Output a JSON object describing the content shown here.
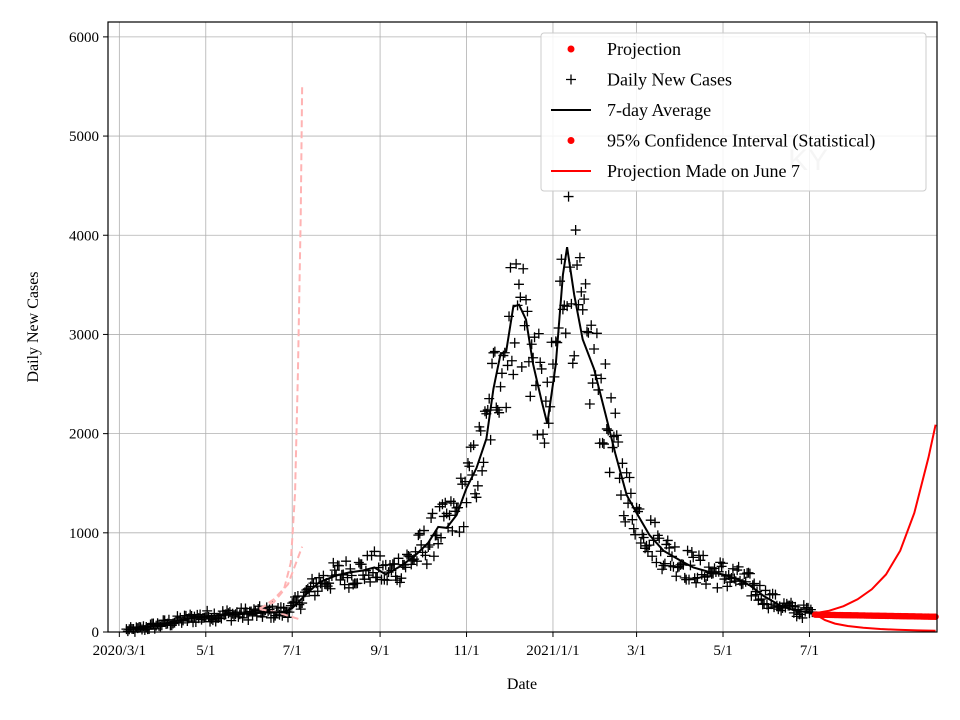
{
  "chart_data": {
    "type": "line",
    "xlabel": "Date",
    "ylabel": "Daily New Cases",
    "watermark": "KY",
    "xlim": [
      "2020-02-22",
      "2021-09-29"
    ],
    "ylim": [
      0,
      6150
    ],
    "grid": true,
    "legend_position": "top-right",
    "x_ticks": [
      {
        "date": "2020-03-01",
        "label": "2020/3/1"
      },
      {
        "date": "2020-05-01",
        "label": "5/1"
      },
      {
        "date": "2020-07-01",
        "label": "7/1"
      },
      {
        "date": "2020-09-01",
        "label": "9/1"
      },
      {
        "date": "2020-11-01",
        "label": "11/1"
      },
      {
        "date": "2021-01-01",
        "label": "2021/1/1"
      },
      {
        "date": "2021-03-01",
        "label": "3/1"
      },
      {
        "date": "2021-05-01",
        "label": "5/1"
      },
      {
        "date": "2021-07-01",
        "label": "7/1"
      }
    ],
    "y_ticks": [
      0,
      1000,
      2000,
      3000,
      4000,
      5000,
      6000
    ],
    "legend": [
      {
        "label": "Projection",
        "kind": "dot",
        "color": "#ff0000"
      },
      {
        "label": "Daily New Cases",
        "kind": "plus",
        "color": "#000000"
      },
      {
        "label": "7-day Average",
        "kind": "line",
        "color": "#000000"
      },
      {
        "label": "95% Confidence Interval (Statistical)",
        "kind": "dot",
        "color": "#ff0000"
      },
      {
        "label": "Projection Made on June 7",
        "kind": "line",
        "color": "#ff0000"
      }
    ],
    "series": [
      {
        "name": "7-day Average",
        "color": "#000000",
        "points": [
          [
            "2020-03-12",
            20
          ],
          [
            "2020-03-25",
            60
          ],
          [
            "2020-04-10",
            110
          ],
          [
            "2020-04-25",
            150
          ],
          [
            "2020-05-10",
            170
          ],
          [
            "2020-05-25",
            180
          ],
          [
            "2020-06-05",
            190
          ],
          [
            "2020-06-15",
            200
          ],
          [
            "2020-06-25",
            200
          ],
          [
            "2020-07-01",
            240
          ],
          [
            "2020-07-10",
            370
          ],
          [
            "2020-07-20",
            500
          ],
          [
            "2020-08-01",
            570
          ],
          [
            "2020-08-10",
            600
          ],
          [
            "2020-08-20",
            620
          ],
          [
            "2020-08-28",
            650
          ],
          [
            "2020-09-05",
            580
          ],
          [
            "2020-09-15",
            660
          ],
          [
            "2020-09-25",
            760
          ],
          [
            "2020-10-05",
            900
          ],
          [
            "2020-10-12",
            1060
          ],
          [
            "2020-10-18",
            1050
          ],
          [
            "2020-10-25",
            1180
          ],
          [
            "2020-11-01",
            1450
          ],
          [
            "2020-11-08",
            1650
          ],
          [
            "2020-11-15",
            1950
          ],
          [
            "2020-11-20",
            2450
          ],
          [
            "2020-11-25",
            2800
          ],
          [
            "2020-11-29",
            2830
          ],
          [
            "2020-12-04",
            3280
          ],
          [
            "2020-12-08",
            3300
          ],
          [
            "2020-12-13",
            3150
          ],
          [
            "2020-12-18",
            2700
          ],
          [
            "2020-12-24",
            2330
          ],
          [
            "2020-12-28",
            2100
          ],
          [
            "2021-01-03",
            2700
          ],
          [
            "2021-01-08",
            3600
          ],
          [
            "2021-01-11",
            3880
          ],
          [
            "2021-01-16",
            3400
          ],
          [
            "2021-01-22",
            2950
          ],
          [
            "2021-01-30",
            2650
          ],
          [
            "2021-02-07",
            2200
          ],
          [
            "2021-02-14",
            1800
          ],
          [
            "2021-02-22",
            1380
          ],
          [
            "2021-03-01",
            1200
          ],
          [
            "2021-03-10",
            980
          ],
          [
            "2021-03-20",
            820
          ],
          [
            "2021-04-01",
            720
          ],
          [
            "2021-04-10",
            650
          ],
          [
            "2021-04-20",
            610
          ],
          [
            "2021-05-01",
            580
          ],
          [
            "2021-05-10",
            540
          ],
          [
            "2021-05-20",
            470
          ],
          [
            "2021-05-30",
            360
          ],
          [
            "2021-06-10",
            270
          ],
          [
            "2021-06-20",
            220
          ],
          [
            "2021-06-30",
            200
          ],
          [
            "2021-07-03",
            190
          ]
        ]
      },
      {
        "name": "Projection Made on June 7",
        "color": "#ff0000",
        "points": [
          [
            "2021-07-05",
            190
          ],
          [
            "2021-07-15",
            215
          ],
          [
            "2021-07-25",
            260
          ],
          [
            "2021-08-04",
            330
          ],
          [
            "2021-08-14",
            430
          ],
          [
            "2021-08-24",
            580
          ],
          [
            "2021-09-03",
            820
          ],
          [
            "2021-09-13",
            1200
          ],
          [
            "2021-09-23",
            1760
          ],
          [
            "2021-09-28",
            2090
          ]
        ]
      },
      {
        "name": "Projection Made on June 7",
        "color": "#ff0000",
        "points": [
          [
            "2021-07-05",
            180
          ],
          [
            "2021-07-12",
            120
          ],
          [
            "2021-07-19",
            85
          ],
          [
            "2021-07-28",
            60
          ],
          [
            "2021-08-08",
            42
          ],
          [
            "2021-08-20",
            30
          ],
          [
            "2021-09-01",
            22
          ],
          [
            "2021-09-15",
            16
          ],
          [
            "2021-09-28",
            12
          ]
        ]
      }
    ]
  }
}
